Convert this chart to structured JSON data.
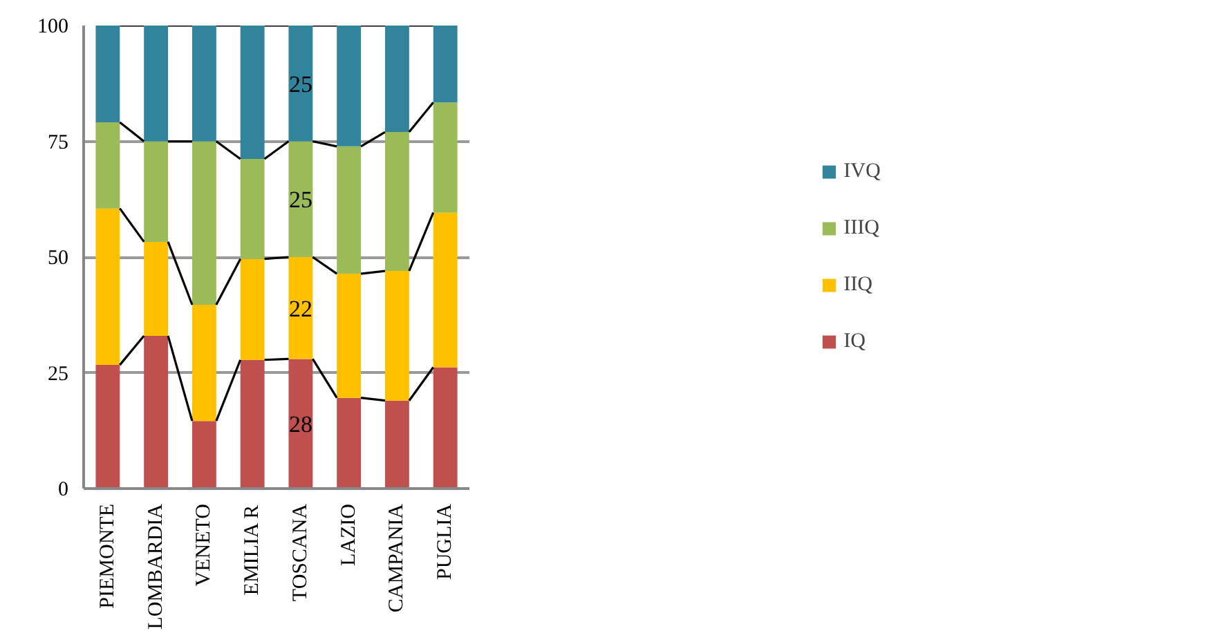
{
  "chart_data": {
    "type": "bar",
    "stacked": true,
    "categories": [
      "PIEMONTE",
      "LOMBARDIA",
      "VENETO",
      "EMILIA R",
      "TOSCANA",
      "LAZIO",
      "CAMPANIA",
      "PUGLIA"
    ],
    "series": [
      {
        "name": "IQ",
        "color": "#c0504d",
        "values": [
          26.7,
          33,
          14.6,
          27.8,
          28,
          19.6,
          19,
          26.2
        ],
        "value_labels": [
          null,
          null,
          null,
          null,
          "28",
          null,
          null,
          null
        ]
      },
      {
        "name": "IIQ",
        "color": "#ffc000",
        "values": [
          33.8,
          20.3,
          25.1,
          21.8,
          22,
          26.8,
          28,
          33.4
        ],
        "value_labels": [
          null,
          null,
          null,
          null,
          "22",
          null,
          null,
          null
        ]
      },
      {
        "name": "IIIQ",
        "color": "#9bbb59",
        "values": [
          18.6,
          21.7,
          35.3,
          21.6,
          25,
          27.5,
          30,
          23.8
        ],
        "value_labels": [
          null,
          null,
          null,
          null,
          "25",
          null,
          null,
          null
        ]
      },
      {
        "name": "IVQ",
        "color": "#31849b",
        "values": [
          20.9,
          25,
          25,
          28.8,
          25,
          26.1,
          23,
          16.6
        ],
        "value_labels": [
          null,
          null,
          null,
          null,
          "25",
          null,
          null,
          null
        ]
      }
    ],
    "ylim": [
      0,
      100
    ],
    "yticks": [
      0,
      25,
      50,
      75,
      100
    ],
    "grid": "y",
    "legend": "right"
  }
}
